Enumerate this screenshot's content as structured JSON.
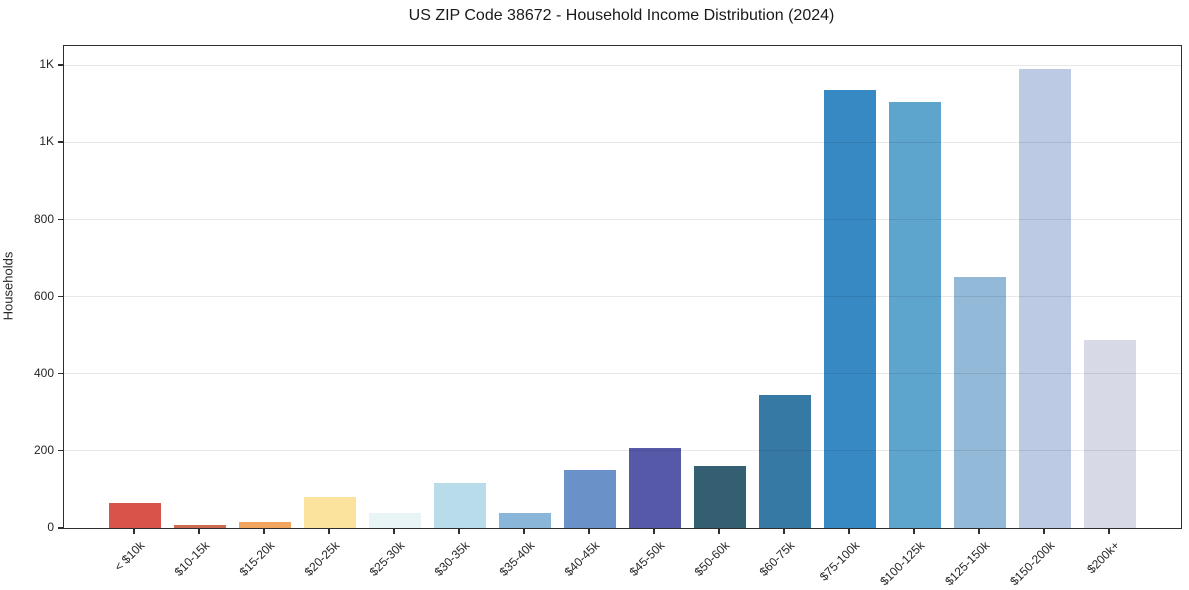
{
  "title": "US ZIP Code 38672 - Household Income Distribution (2024)",
  "chart_data": {
    "type": "bar",
    "title": "US ZIP Code 38672 - Household Income Distribution (2024)",
    "xlabel": "",
    "ylabel": "Households",
    "categories": [
      "< $10k",
      "$10-15k",
      "$15-20k",
      "$20-25k",
      "$25-30k",
      "$30-35k",
      "$35-40k",
      "$40-45k",
      "$45-50k",
      "$50-60k",
      "$60-75k",
      "$75-100k",
      "$100-125k",
      "$125-150k",
      "$150-200k",
      "$200k+"
    ],
    "values": [
      65,
      8,
      15,
      80,
      40,
      117,
      38,
      150,
      208,
      160,
      345,
      1135,
      1105,
      650,
      1190,
      487
    ],
    "bar_colors": [
      "#d9534b",
      "#ce6a52",
      "#f2a55f",
      "#fbe39d",
      "#e9f4f6",
      "#b9dcea",
      "#8ab6da",
      "#6b92c8",
      "#5559a7",
      "#345f72",
      "#3779a5",
      "#3689c2",
      "#5ea5cd",
      "#93b9d9",
      "#bccbe3",
      "#d7d9e6"
    ],
    "ylim": [
      0,
      1250
    ],
    "yticks": [
      {
        "value": 0,
        "label": "0"
      },
      {
        "value": 200,
        "label": "200"
      },
      {
        "value": 400,
        "label": "400"
      },
      {
        "value": 600,
        "label": "600"
      },
      {
        "value": 800,
        "label": "800"
      },
      {
        "value": 1000,
        "label": "1K"
      },
      {
        "value": 1200,
        "label": "1K"
      }
    ],
    "grid": "horizontal",
    "legend_position": "none",
    "x_tick_rotation_deg": 45
  }
}
